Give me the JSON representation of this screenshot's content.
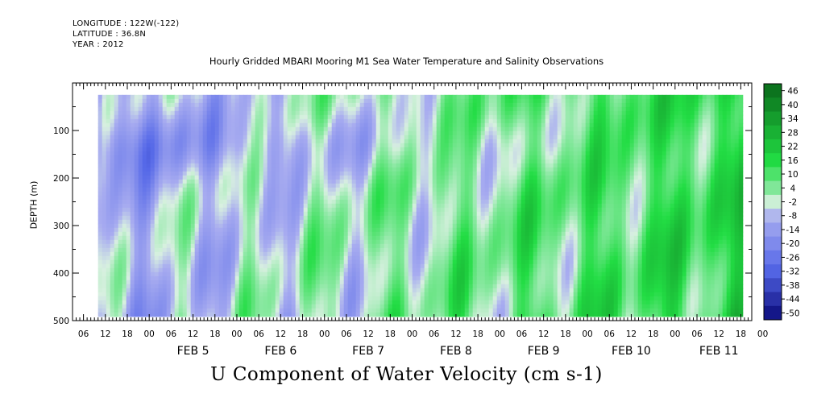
{
  "header": {
    "longitude": "LONGITUDE : 122W(-122)",
    "latitude": "LATITUDE : 36.8N",
    "year": "YEAR : 2012"
  },
  "chart_data": {
    "type": "heatmap",
    "title": "Hourly Gridded MBARI Mooring M1 Sea Water Temperature and Salinity Observations",
    "ylabel": "DEPTH (m)",
    "bottom_title": "U Component of Water Velocity (cm s-1)",
    "x_axis": {
      "range": [
        "2012-02-04T03:00",
        "2012-02-11T21:00"
      ],
      "hour_ticks": [
        "06",
        "12",
        "18",
        "00",
        "06",
        "12",
        "18",
        "00",
        "06",
        "12",
        "18",
        "00",
        "06",
        "12",
        "18",
        "00",
        "06",
        "12",
        "18",
        "00",
        "06",
        "12",
        "18",
        "00",
        "06",
        "12",
        "18",
        "00",
        "06",
        "12",
        "18",
        "00"
      ],
      "day_labels": [
        "FEB  5",
        "FEB  6",
        "FEB  7",
        "FEB  8",
        "FEB  9",
        "FEB 10",
        "FEB 11"
      ]
    },
    "y_axis": {
      "range": [
        0,
        500
      ],
      "reversed": true,
      "ticks": [
        100,
        200,
        300,
        400,
        500
      ]
    },
    "data_extent": {
      "start": "2012-02-04T10:00",
      "end": "2012-02-11T18:00",
      "depth_min": 25,
      "depth_max": 485
    },
    "colorbar": {
      "labels": [
        "46",
        "40",
        "34",
        "28",
        "22",
        "16",
        "10",
        "4",
        "-2",
        "-8",
        "-14",
        "-20",
        "-26",
        "-32",
        "-38",
        "-44",
        "-50"
      ],
      "min": -50,
      "max": 52
    },
    "colors": {
      "strong_positive": "#0a6a1a",
      "positive": "#22dd44",
      "weak_positive": "#88e8a0",
      "near_zero": "#d8f0e0",
      "weak_negative": "#a8acf0",
      "negative": "#5568e8",
      "strong_negative": "#0a0a7a"
    }
  }
}
